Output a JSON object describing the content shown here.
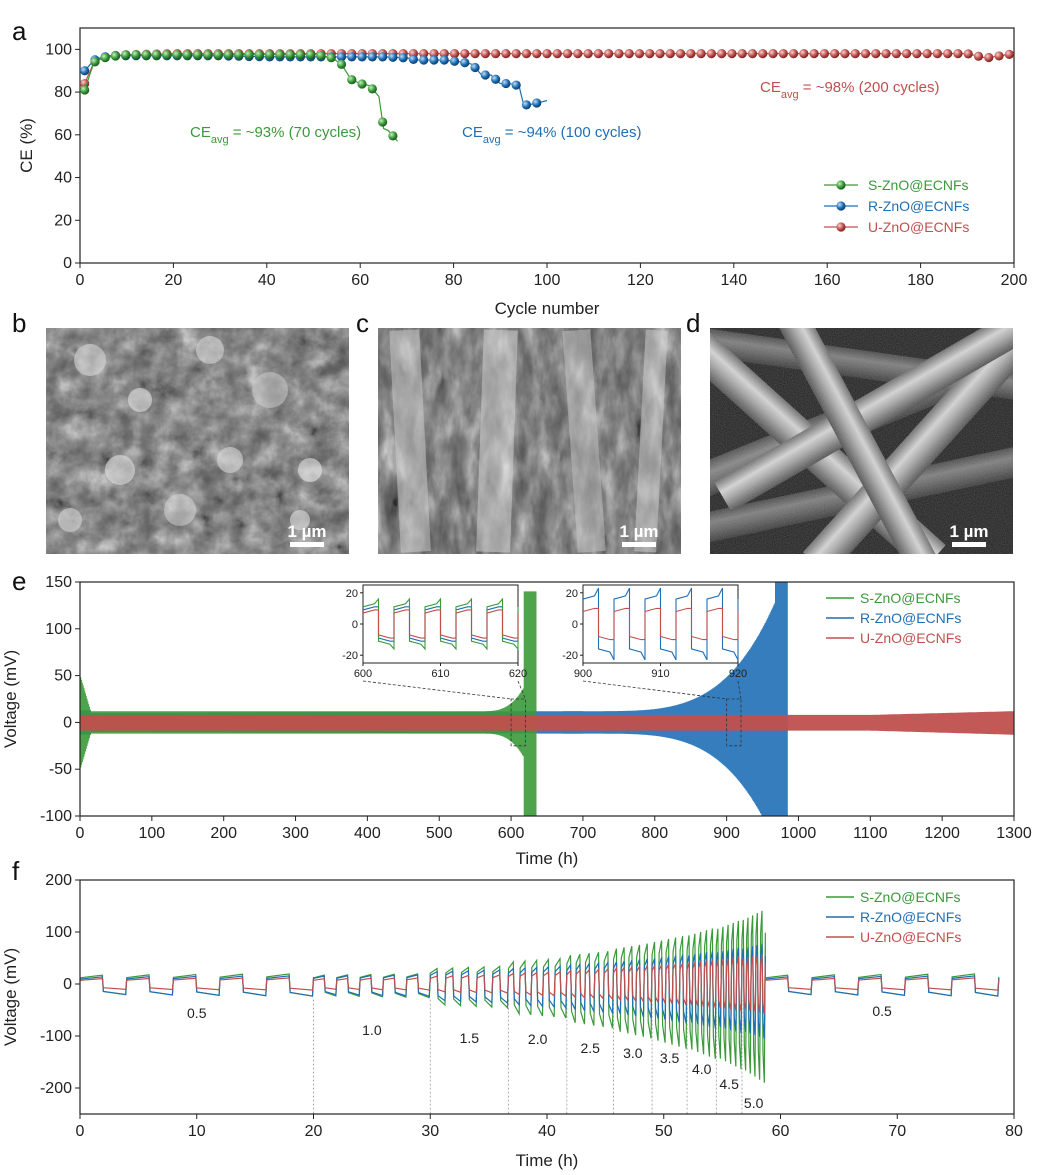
{
  "panels": {
    "a": "a",
    "b": "b",
    "c": "c",
    "d": "d",
    "e": "e",
    "f": "f"
  },
  "colors": {
    "S": "#3a9a3a",
    "R": "#1f6fb5",
    "U": "#c0504d"
  },
  "chart_data": [
    {
      "id": "a",
      "type": "scatter",
      "xlabel": "Cycle number",
      "ylabel": "CE (%)",
      "xlim": [
        0,
        200
      ],
      "ylim": [
        0,
        110
      ],
      "xticks": [
        "0",
        "20",
        "40",
        "60",
        "80",
        "100",
        "120",
        "140",
        "160",
        "180",
        "200"
      ],
      "yticks": [
        "0",
        "20",
        "40",
        "60",
        "80",
        "100"
      ],
      "legend_position": "bottom-right",
      "series": [
        {
          "name": "S-ZnO@ECNFs",
          "key": "S",
          "x": [
            1,
            3,
            5,
            8,
            10,
            15,
            20,
            25,
            30,
            35,
            40,
            45,
            50,
            52,
            54,
            56,
            58,
            60,
            62,
            64,
            65,
            66,
            68
          ],
          "y": [
            81,
            94,
            96,
            97,
            97.5,
            97.5,
            97.5,
            97.5,
            97.5,
            97.5,
            97.5,
            97.5,
            97.5,
            97,
            96,
            93,
            86,
            84,
            83,
            78,
            63,
            62,
            57
          ]
        },
        {
          "name": "R-ZnO@ECNFs",
          "key": "R",
          "x": [
            1,
            3,
            5,
            8,
            10,
            15,
            20,
            30,
            40,
            50,
            60,
            65,
            70,
            72,
            75,
            78,
            80,
            82,
            84,
            86,
            88,
            90,
            92,
            94,
            95,
            96,
            98,
            100
          ],
          "y": [
            90,
            95,
            96.5,
            97,
            97,
            97,
            97,
            97,
            96.5,
            96.5,
            96.5,
            96.5,
            96,
            95,
            95,
            95,
            94.5,
            94,
            93,
            88,
            88,
            84,
            84,
            83,
            74,
            74,
            75,
            76
          ]
        },
        {
          "name": "U-ZnO@ECNFs",
          "key": "U",
          "x": [
            1,
            3,
            6,
            10,
            20,
            30,
            40,
            50,
            60,
            70,
            80,
            90,
            100,
            110,
            120,
            130,
            140,
            150,
            160,
            170,
            180,
            190,
            194,
            197,
            200
          ],
          "y": [
            84,
            94,
            97,
            97.5,
            98,
            98,
            98,
            98,
            98,
            98,
            98,
            98,
            98,
            98,
            98,
            98,
            98,
            98,
            98,
            98,
            98,
            98,
            96,
            97,
            98
          ]
        }
      ],
      "annotations": [
        {
          "key": "S",
          "prefix": "CE",
          "sub": "avg",
          "text": " = ~93% (70 cycles)"
        },
        {
          "key": "R",
          "prefix": "CE",
          "sub": "avg",
          "text": " = ~94% (100 cycles)"
        },
        {
          "key": "U",
          "prefix": "CE",
          "sub": "avg",
          "text": " = ~98% (200 cycles)"
        }
      ]
    },
    {
      "id": "e",
      "type": "line",
      "xlabel": "Time (h)",
      "ylabel": "Voltage (mV)",
      "xlim": [
        0,
        1300
      ],
      "ylim": [
        -100,
        150
      ],
      "xticks": [
        "0",
        "100",
        "200",
        "300",
        "400",
        "500",
        "600",
        "700",
        "800",
        "900",
        "1000",
        "1100",
        "1200",
        "1300"
      ],
      "yticks": [
        "-100",
        "-50",
        "0",
        "50",
        "100",
        "150"
      ],
      "legend_position": "top-right",
      "series": [
        {
          "name": "S-ZnO@ECNFs",
          "key": "S",
          "end_time": 635,
          "base_amplitude": 12
        },
        {
          "name": "R-ZnO@ECNFs",
          "key": "R",
          "end_time": 985,
          "base_amplitude": 10
        },
        {
          "name": "U-ZnO@ECNFs",
          "key": "U",
          "end_time": 1300,
          "base_amplitude": 8
        }
      ],
      "insets": [
        {
          "xlim": [
            600,
            620
          ],
          "ylim": [
            -25,
            25
          ],
          "xticks": [
            "600",
            "610",
            "620"
          ],
          "yticks": [
            "20",
            "0",
            "-20"
          ]
        },
        {
          "xlim": [
            900,
            920
          ],
          "ylim": [
            -25,
            25
          ],
          "xticks": [
            "900",
            "910",
            "920"
          ],
          "yticks": [
            "20",
            "0",
            "-20"
          ]
        }
      ]
    },
    {
      "id": "f",
      "type": "line",
      "xlabel": "Time (h)",
      "ylabel": "Voltage (mV)",
      "xlim": [
        0,
        80
      ],
      "ylim": [
        -250,
        200
      ],
      "xticks": [
        "0",
        "10",
        "20",
        "30",
        "40",
        "50",
        "60",
        "70",
        "80"
      ],
      "yticks": [
        "-200",
        "-100",
        "0",
        "100",
        "200"
      ],
      "legend_position": "top-right",
      "series": [
        {
          "name": "S-ZnO@ECNFs",
          "key": "S"
        },
        {
          "name": "R-ZnO@ECNFs",
          "key": "R"
        },
        {
          "name": "U-ZnO@ECNFs",
          "key": "U"
        }
      ],
      "rate_segments": [
        {
          "label": "0.5",
          "start": 0,
          "end": 20
        },
        {
          "label": "1.0",
          "start": 20,
          "end": 30
        },
        {
          "label": "1.5",
          "start": 30,
          "end": 36.7
        },
        {
          "label": "2.0",
          "start": 36.7,
          "end": 41.7
        },
        {
          "label": "2.5",
          "start": 41.7,
          "end": 45.7
        },
        {
          "label": "3.0",
          "start": 45.7,
          "end": 49
        },
        {
          "label": "3.5",
          "start": 49,
          "end": 52
        },
        {
          "label": "4.0",
          "start": 52,
          "end": 54.5
        },
        {
          "label": "4.5",
          "start": 54.5,
          "end": 56.7
        },
        {
          "label": "5.0",
          "start": 56.7,
          "end": 58.7
        },
        {
          "label": "0.5",
          "start": 58.7,
          "end": 78.7
        }
      ],
      "peaks": {
        "S": [
          20,
          35,
          50,
          65,
          80,
          95,
          110,
          125,
          145
        ],
        "R": [
          18,
          28,
          35,
          43,
          50,
          58,
          65,
          72,
          80
        ],
        "U": [
          12,
          18,
          24,
          30,
          36,
          42,
          48,
          54,
          58
        ]
      }
    }
  ],
  "images": [
    {
      "id": "b",
      "scale_bar": "1 µm"
    },
    {
      "id": "c",
      "scale_bar": "1 µm"
    },
    {
      "id": "d",
      "scale_bar": "1 µm"
    }
  ]
}
